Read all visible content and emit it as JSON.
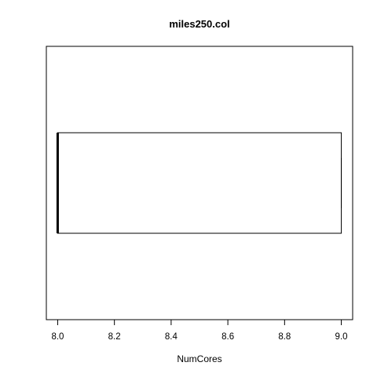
{
  "chart_data": {
    "type": "boxplot",
    "orientation": "horizontal",
    "title": "miles250.col",
    "xlabel": "NumCores",
    "ylabel": "",
    "xlim": [
      7.96,
      9.04
    ],
    "x_ticks": [
      8.0,
      8.2,
      8.4,
      8.6,
      8.8,
      9.0
    ],
    "x_tick_labels": [
      "8.0",
      "8.2",
      "8.4",
      "8.6",
      "8.8",
      "9.0"
    ],
    "boxes": [
      {
        "min": 8.0,
        "q1": 8.0,
        "median": 8.0,
        "q3": 9.0,
        "max": 9.0
      }
    ]
  }
}
